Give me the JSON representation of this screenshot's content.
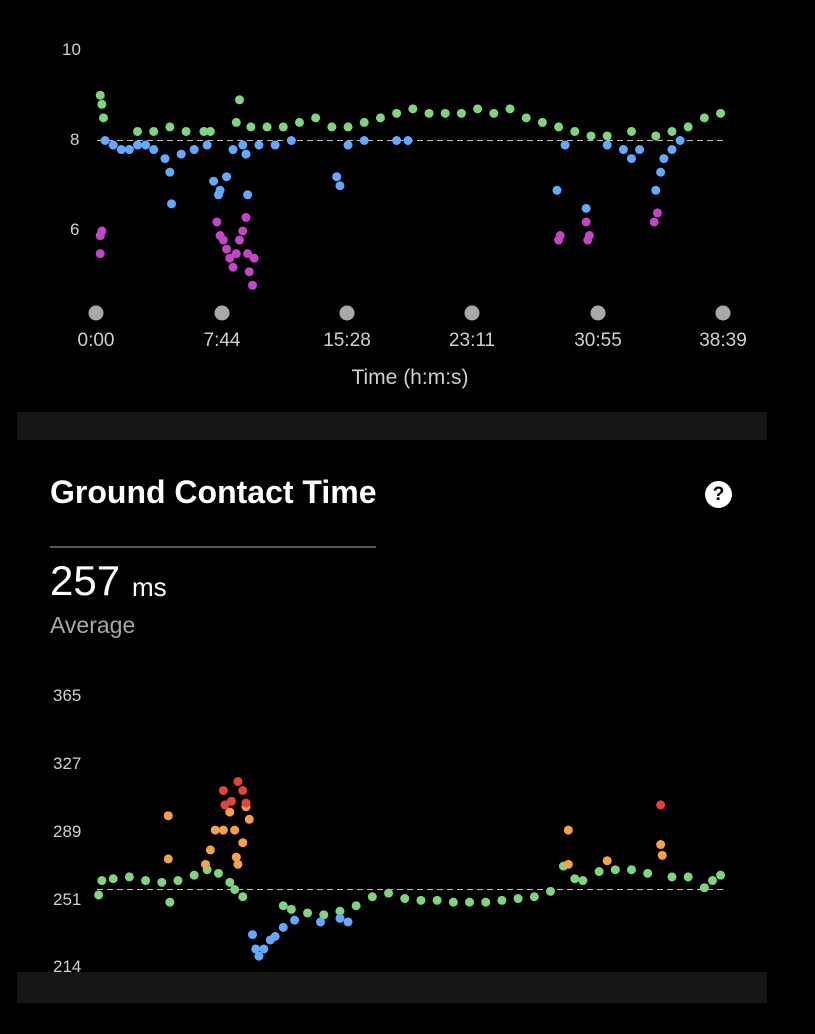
{
  "cadence_chart": {
    "y_ticks": [
      "10",
      "8",
      "6"
    ],
    "x_ticks": [
      "0:00",
      "7:44",
      "15:28",
      "23:11",
      "30:55",
      "38:39"
    ],
    "x_axis_label": "Time (h:m:s)"
  },
  "gct_section": {
    "title": "Ground Contact Time",
    "help_icon": "?",
    "value": "257",
    "unit": "ms",
    "value_label": "Average"
  },
  "gct_chart": {
    "y_ticks": [
      "365",
      "327",
      "289",
      "251",
      "214"
    ]
  },
  "colors": {
    "blue": "#64a8ff",
    "green": "#7fd47f",
    "purple": "#c445c8",
    "orange": "#f5a04a",
    "red": "#e0443a",
    "background": "#000000"
  },
  "chart_data": [
    {
      "type": "scatter",
      "ylim": [
        4.3,
        10
      ],
      "xlim": [
        0,
        38.65
      ],
      "x_unit": "minutes",
      "reference_line": 8,
      "series": [
        {
          "color_role": "green",
          "points": [
            [
              0.2,
              9.0
            ],
            [
              0.3,
              8.8
            ],
            [
              0.4,
              8.5
            ],
            [
              2.5,
              8.2
            ],
            [
              3.5,
              8.2
            ],
            [
              4.5,
              8.3
            ],
            [
              5.5,
              8.2
            ],
            [
              6.6,
              8.2
            ],
            [
              7.0,
              8.2
            ],
            [
              8.6,
              8.4
            ],
            [
              8.8,
              8.9
            ],
            [
              9.5,
              8.3
            ],
            [
              10.5,
              8.3
            ],
            [
              11.5,
              8.3
            ],
            [
              12.5,
              8.4
            ],
            [
              13.5,
              8.5
            ],
            [
              14.5,
              8.3
            ],
            [
              15.5,
              8.3
            ],
            [
              16.5,
              8.4
            ],
            [
              17.5,
              8.5
            ],
            [
              18.5,
              8.6
            ],
            [
              19.5,
              8.7
            ],
            [
              20.5,
              8.6
            ],
            [
              21.5,
              8.6
            ],
            [
              22.5,
              8.6
            ],
            [
              23.5,
              8.7
            ],
            [
              24.5,
              8.6
            ],
            [
              25.5,
              8.7
            ],
            [
              26.5,
              8.5
            ],
            [
              27.5,
              8.4
            ],
            [
              28.5,
              8.3
            ],
            [
              29.5,
              8.2
            ],
            [
              30.5,
              8.1
            ],
            [
              31.5,
              8.1
            ],
            [
              33.0,
              8.2
            ],
            [
              34.5,
              8.1
            ],
            [
              35.5,
              8.2
            ],
            [
              36.5,
              8.3
            ],
            [
              37.5,
              8.5
            ],
            [
              38.5,
              8.6
            ]
          ]
        },
        {
          "color_role": "blue",
          "points": [
            [
              0.5,
              8.0
            ],
            [
              1.0,
              7.9
            ],
            [
              1.5,
              7.8
            ],
            [
              2.0,
              7.8
            ],
            [
              2.5,
              7.9
            ],
            [
              3.0,
              7.9
            ],
            [
              3.5,
              7.8
            ],
            [
              4.2,
              7.6
            ],
            [
              4.5,
              7.3
            ],
            [
              4.6,
              6.6
            ],
            [
              5.2,
              7.7
            ],
            [
              6.0,
              7.8
            ],
            [
              6.8,
              7.9
            ],
            [
              7.2,
              7.1
            ],
            [
              7.5,
              6.8
            ],
            [
              7.6,
              6.9
            ],
            [
              8.0,
              7.2
            ],
            [
              8.4,
              7.8
            ],
            [
              9.0,
              7.9
            ],
            [
              9.2,
              7.7
            ],
            [
              9.3,
              6.8
            ],
            [
              10.0,
              7.9
            ],
            [
              11.0,
              7.9
            ],
            [
              12.0,
              8.0
            ],
            [
              14.8,
              7.2
            ],
            [
              15.0,
              7.0
            ],
            [
              15.5,
              7.9
            ],
            [
              16.5,
              8.0
            ],
            [
              18.5,
              8.0
            ],
            [
              19.2,
              8.0
            ],
            [
              28.4,
              6.9
            ],
            [
              28.9,
              7.9
            ],
            [
              30.2,
              6.5
            ],
            [
              31.5,
              7.9
            ],
            [
              32.5,
              7.8
            ],
            [
              33.0,
              7.6
            ],
            [
              33.5,
              7.8
            ],
            [
              34.5,
              6.9
            ],
            [
              34.8,
              7.3
            ],
            [
              35.0,
              7.6
            ],
            [
              35.5,
              7.8
            ],
            [
              36.0,
              8.0
            ]
          ]
        },
        {
          "color_role": "purple",
          "points": [
            [
              0.2,
              5.9
            ],
            [
              0.3,
              6.0
            ],
            [
              0.2,
              5.5
            ],
            [
              7.4,
              6.2
            ],
            [
              7.6,
              5.9
            ],
            [
              7.8,
              5.8
            ],
            [
              8.0,
              5.6
            ],
            [
              8.2,
              5.4
            ],
            [
              8.4,
              5.2
            ],
            [
              8.6,
              5.5
            ],
            [
              8.8,
              5.8
            ],
            [
              9.0,
              6.0
            ],
            [
              9.2,
              6.3
            ],
            [
              9.3,
              5.5
            ],
            [
              9.4,
              5.1
            ],
            [
              9.6,
              4.8
            ],
            [
              9.7,
              5.4
            ],
            [
              28.5,
              5.8
            ],
            [
              28.6,
              5.9
            ],
            [
              30.2,
              6.2
            ],
            [
              30.3,
              5.8
            ],
            [
              30.4,
              5.9
            ],
            [
              34.4,
              6.2
            ],
            [
              34.6,
              6.4
            ]
          ]
        }
      ]
    },
    {
      "type": "scatter",
      "ylim": [
        214,
        365
      ],
      "xlim": [
        0,
        38.65
      ],
      "x_unit": "minutes",
      "reference_line": 257,
      "series": [
        {
          "color_role": "green",
          "points": [
            [
              0.1,
              254
            ],
            [
              0.3,
              262
            ],
            [
              1.0,
              263
            ],
            [
              2.0,
              264
            ],
            [
              3.0,
              262
            ],
            [
              4.0,
              261
            ],
            [
              4.5,
              250
            ],
            [
              5.0,
              262
            ],
            [
              6.0,
              265
            ],
            [
              6.8,
              268
            ],
            [
              7.5,
              266
            ],
            [
              8.2,
              261
            ],
            [
              8.5,
              257
            ],
            [
              9.0,
              253
            ],
            [
              11.5,
              248
            ],
            [
              12.0,
              246
            ],
            [
              13.0,
              244
            ],
            [
              14.0,
              243
            ],
            [
              15.0,
              245
            ],
            [
              16.0,
              248
            ],
            [
              17.0,
              253
            ],
            [
              18.0,
              255
            ],
            [
              19.0,
              252
            ],
            [
              20.0,
              251
            ],
            [
              21.0,
              251
            ],
            [
              22.0,
              250
            ],
            [
              23.0,
              250
            ],
            [
              24.0,
              250
            ],
            [
              25.0,
              251
            ],
            [
              26.0,
              252
            ],
            [
              27.0,
              253
            ],
            [
              28.0,
              256
            ],
            [
              28.8,
              270
            ],
            [
              29.5,
              263
            ],
            [
              30.0,
              262
            ],
            [
              31.0,
              267
            ],
            [
              32.0,
              268
            ],
            [
              33.0,
              268
            ],
            [
              34.0,
              266
            ],
            [
              35.5,
              264
            ],
            [
              36.5,
              264
            ],
            [
              37.5,
              258
            ],
            [
              38.0,
              262
            ],
            [
              38.5,
              265
            ]
          ]
        },
        {
          "color_role": "blue",
          "points": [
            [
              9.6,
              232
            ],
            [
              9.8,
              224
            ],
            [
              10.0,
              220
            ],
            [
              10.3,
              224
            ],
            [
              10.7,
              229
            ],
            [
              11.0,
              231
            ],
            [
              11.5,
              236
            ],
            [
              12.2,
              240
            ],
            [
              13.8,
              239
            ],
            [
              15.0,
              241
            ],
            [
              15.5,
              239
            ]
          ]
        },
        {
          "color_role": "orange",
          "points": [
            [
              4.4,
              298
            ],
            [
              4.4,
              274
            ],
            [
              6.7,
              271
            ],
            [
              7.0,
              279
            ],
            [
              7.3,
              290
            ],
            [
              7.8,
              290
            ],
            [
              8.2,
              300
            ],
            [
              8.5,
              290
            ],
            [
              8.6,
              275
            ],
            [
              8.7,
              271
            ],
            [
              9.0,
              283
            ],
            [
              9.2,
              303
            ],
            [
              9.4,
              296
            ],
            [
              29.1,
              290
            ],
            [
              29.1,
              271
            ],
            [
              31.5,
              273
            ],
            [
              34.8,
              282
            ],
            [
              34.9,
              276
            ]
          ]
        },
        {
          "color_role": "red",
          "points": [
            [
              7.8,
              312
            ],
            [
              7.9,
              304
            ],
            [
              8.3,
              306
            ],
            [
              8.7,
              317
            ],
            [
              9.0,
              312
            ],
            [
              9.2,
              305
            ],
            [
              34.8,
              304
            ]
          ]
        }
      ]
    }
  ]
}
